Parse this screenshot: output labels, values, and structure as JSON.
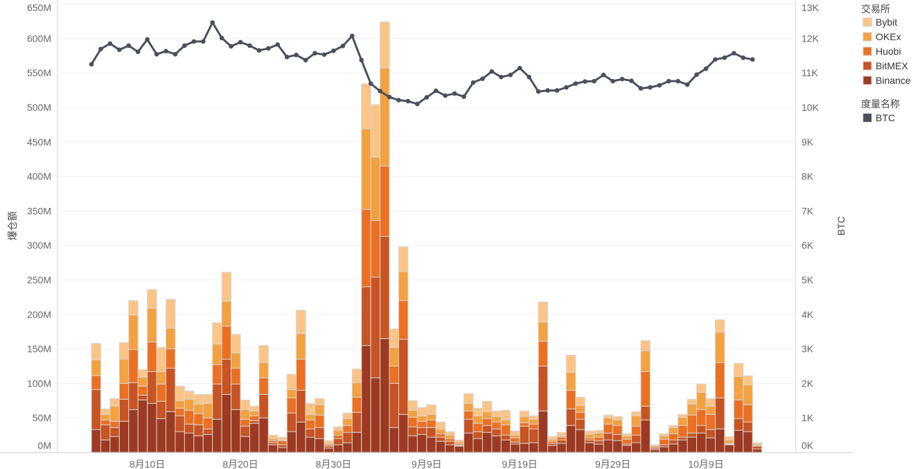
{
  "chart_data": {
    "type": "bar",
    "stacked": true,
    "title": "",
    "ylabel": "爆仓额",
    "y2label": "BTC",
    "ylim": [
      0,
      650
    ],
    "y_unit": "M",
    "y2lim": [
      0,
      13
    ],
    "y2_unit": "K",
    "yticks": [
      "0M",
      "50M",
      "100M",
      "150M",
      "200M",
      "250M",
      "300M",
      "350M",
      "400M",
      "450M",
      "500M",
      "550M",
      "600M",
      "650M"
    ],
    "y2ticks": [
      "0K",
      "1K",
      "2K",
      "3K",
      "4K",
      "5K",
      "6K",
      "7K",
      "8K",
      "9K",
      "10K",
      "11K",
      "12K",
      "13K"
    ],
    "xtick_labels": [
      "8月10日",
      "8月20日",
      "8月30日",
      "9月9日",
      "9月19日",
      "9月29日",
      "10月9日"
    ],
    "grid": true,
    "legend_placement": "right",
    "legend_title": "交易所",
    "legend2_title": "度量名称",
    "categories": [
      "8月4日",
      "8月5日",
      "8月6日",
      "8月7日",
      "8月8日",
      "8月9日",
      "8月10日",
      "8月11日",
      "8月12日",
      "8月13日",
      "8月14日",
      "8月15日",
      "8月16日",
      "8月17日",
      "8月18日",
      "8月19日",
      "8月20日",
      "8月21日",
      "8月22日",
      "8月23日",
      "8月24日",
      "8月25日",
      "8月26日",
      "8月27日",
      "8月28日",
      "8月29日",
      "8月30日",
      "8月31日",
      "9月1日",
      "9月2日",
      "9月3日",
      "9月4日",
      "9月5日",
      "9月6日",
      "9月7日",
      "9月8日",
      "9月9日",
      "9月10日",
      "9月11日",
      "9月12日",
      "9月13日",
      "9月14日",
      "9月15日",
      "9月16日",
      "9月17日",
      "9月18日",
      "9月19日",
      "9月20日",
      "9月21日",
      "9月22日",
      "9月23日",
      "9月24日",
      "9月25日",
      "9月26日",
      "9月27日",
      "9月28日",
      "9月29日",
      "9月30日",
      "10月1日",
      "10月2日",
      "10月3日",
      "10月4日",
      "10月5日",
      "10月6日",
      "10月7日",
      "10月8日",
      "10月9日",
      "10月10日",
      "10月11日",
      "10月12日",
      "10月13日",
      "10月14日"
    ],
    "series": [
      {
        "name": "Binance",
        "color": "#9E3A21",
        "values": [
          33,
          18,
          23,
          45,
          62,
          76,
          71,
          49,
          59,
          30,
          28,
          24,
          26,
          48,
          84,
          62,
          23,
          42,
          50,
          11,
          7,
          30,
          44,
          22,
          20,
          6,
          11,
          14,
          29,
          155,
          108,
          165,
          36,
          55,
          24,
          26,
          22,
          16,
          11,
          9,
          28,
          20,
          29,
          24,
          18,
          12,
          13,
          14,
          60,
          10,
          13,
          39,
          33,
          14,
          12,
          18,
          17,
          10,
          14,
          47,
          4,
          8,
          12,
          18,
          22,
          28,
          21,
          34,
          11,
          32,
          30,
          5
        ]
      },
      {
        "name": "BitMEX",
        "color": "#C75422",
        "values": [
          58,
          22,
          13,
          32,
          39,
          7,
          46,
          25,
          63,
          23,
          13,
          16,
          8,
          51,
          51,
          37,
          15,
          4,
          34,
          3,
          4,
          27,
          46,
          12,
          16,
          3,
          9,
          15,
          29,
          85,
          146,
          148,
          64,
          109,
          13,
          10,
          14,
          6,
          5,
          1,
          20,
          10,
          10,
          10,
          7,
          3,
          25,
          20,
          65,
          3,
          5,
          24,
          15,
          4,
          5,
          10,
          9,
          2,
          11,
          20,
          2,
          3,
          6,
          4,
          6,
          11,
          12,
          45,
          1,
          17,
          14,
          4
        ]
      },
      {
        "name": "Huobi",
        "color": "#EC7022",
        "values": [
          20,
          7,
          9,
          23,
          48,
          13,
          43,
          25,
          28,
          11,
          20,
          16,
          16,
          28,
          48,
          23,
          10,
          7,
          24,
          3,
          6,
          22,
          45,
          13,
          18,
          2,
          5,
          10,
          22,
          112,
          82,
          102,
          25,
          56,
          14,
          9,
          11,
          5,
          4,
          2,
          12,
          12,
          10,
          10,
          15,
          6,
          5,
          7,
          36,
          3,
          4,
          27,
          10,
          3,
          5,
          13,
          13,
          7,
          13,
          50,
          2,
          8,
          9,
          17,
          26,
          23,
          22,
          51,
          1,
          27,
          25,
          1
        ]
      },
      {
        "name": "OKEx",
        "color": "#F4A13F",
        "values": [
          23,
          8,
          22,
          35,
          50,
          13,
          49,
          18,
          30,
          11,
          16,
          14,
          21,
          30,
          36,
          22,
          14,
          7,
          22,
          3,
          1,
          12,
          37,
          8,
          15,
          2,
          7,
          10,
          21,
          117,
          92,
          142,
          27,
          42,
          10,
          8,
          8,
          7,
          5,
          3,
          11,
          11,
          10,
          8,
          7,
          4,
          9,
          7,
          28,
          3,
          2,
          26,
          10,
          5,
          6,
          9,
          8,
          5,
          15,
          30,
          2,
          5,
          9,
          12,
          16,
          25,
          12,
          44,
          5,
          34,
          29,
          2
        ]
      },
      {
        "name": "Bybit",
        "color": "#FDC486",
        "values": [
          24,
          8,
          11,
          24,
          21,
          11,
          27,
          35,
          42,
          21,
          12,
          14,
          13,
          31,
          42,
          27,
          14,
          7,
          25,
          5,
          4,
          22,
          34,
          16,
          9,
          4,
          5,
          8,
          20,
          65,
          76,
          67,
          27,
          36,
          14,
          12,
          14,
          10,
          5,
          3,
          14,
          11,
          15,
          8,
          14,
          6,
          8,
          5,
          29,
          4,
          5,
          25,
          12,
          5,
          4,
          4,
          5,
          3,
          6,
          15,
          1,
          3,
          3,
          4,
          7,
          12,
          11,
          18,
          5,
          19,
          13,
          2
        ]
      }
    ],
    "line_series": {
      "name": "BTC",
      "color": "#4A505B",
      "axis": "right",
      "values": [
        11.25,
        11.69,
        11.85,
        11.67,
        11.79,
        11.61,
        11.97,
        11.54,
        11.63,
        11.54,
        11.79,
        11.91,
        11.91,
        12.46,
        12.01,
        11.77,
        11.89,
        11.79,
        11.65,
        11.71,
        11.82,
        11.46,
        11.52,
        11.37,
        11.57,
        11.53,
        11.64,
        11.78,
        12.07,
        11.37,
        10.69,
        10.47,
        10.3,
        10.21,
        10.18,
        10.1,
        10.29,
        10.48,
        10.34,
        10.4,
        10.31,
        10.72,
        10.83,
        11.04,
        10.88,
        10.94,
        11.14,
        10.88,
        10.46,
        10.49,
        10.49,
        10.58,
        10.69,
        10.75,
        10.76,
        10.94,
        10.76,
        10.82,
        10.77,
        10.55,
        10.58,
        10.64,
        10.76,
        10.76,
        10.66,
        10.95,
        11.12,
        11.39,
        11.44,
        11.57,
        11.44,
        11.39
      ]
    }
  }
}
